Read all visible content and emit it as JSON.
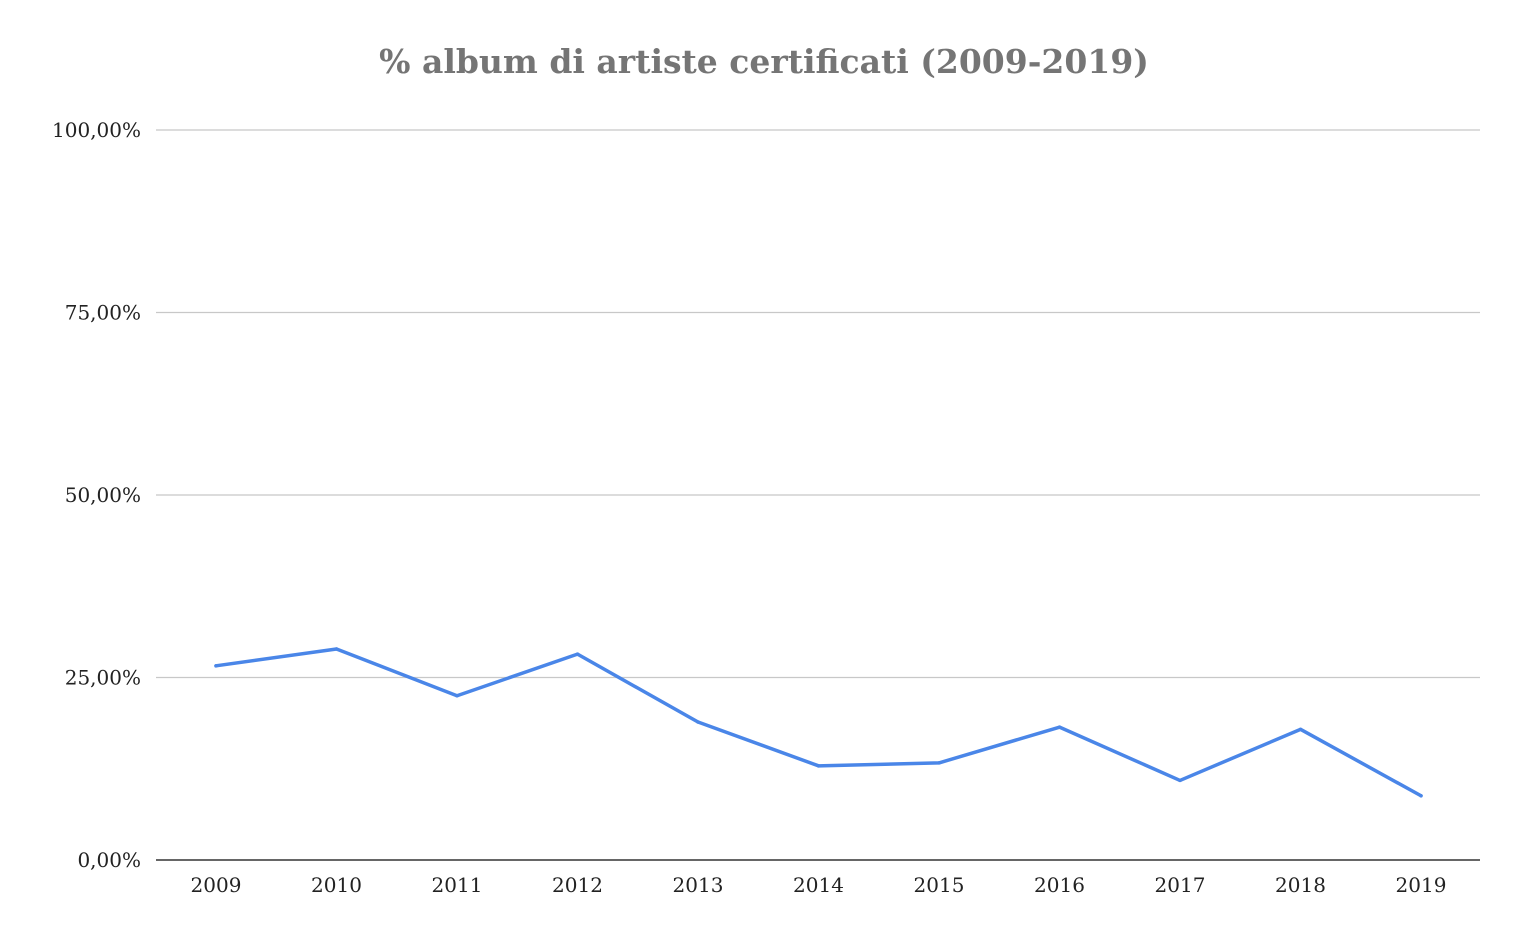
{
  "chart_data": {
    "type": "line",
    "title": "% album di artiste certificati (2009-2019)",
    "xlabel": "",
    "ylabel": "",
    "categories": [
      "2009",
      "2010",
      "2011",
      "2012",
      "2013",
      "2014",
      "2015",
      "2016",
      "2017",
      "2018",
      "2019"
    ],
    "series": [
      {
        "values": [
          26.6,
          28.9,
          22.5,
          28.2,
          18.9,
          12.9,
          13.3,
          18.2,
          10.9,
          17.9,
          8.8
        ],
        "color": "#4a86e8"
      }
    ],
    "ylim": [
      0,
      100
    ],
    "yticks": [
      0,
      25,
      50,
      75,
      100
    ],
    "ytick_labels": [
      "0,00%",
      "25,00%",
      "50,00%",
      "75,00%",
      "100,00%"
    ],
    "grid": true,
    "legend": "none",
    "colors": {
      "title": "#757575",
      "gridline": "#c8c8c8",
      "axis": "#333333",
      "tick_label": "#222222"
    }
  }
}
